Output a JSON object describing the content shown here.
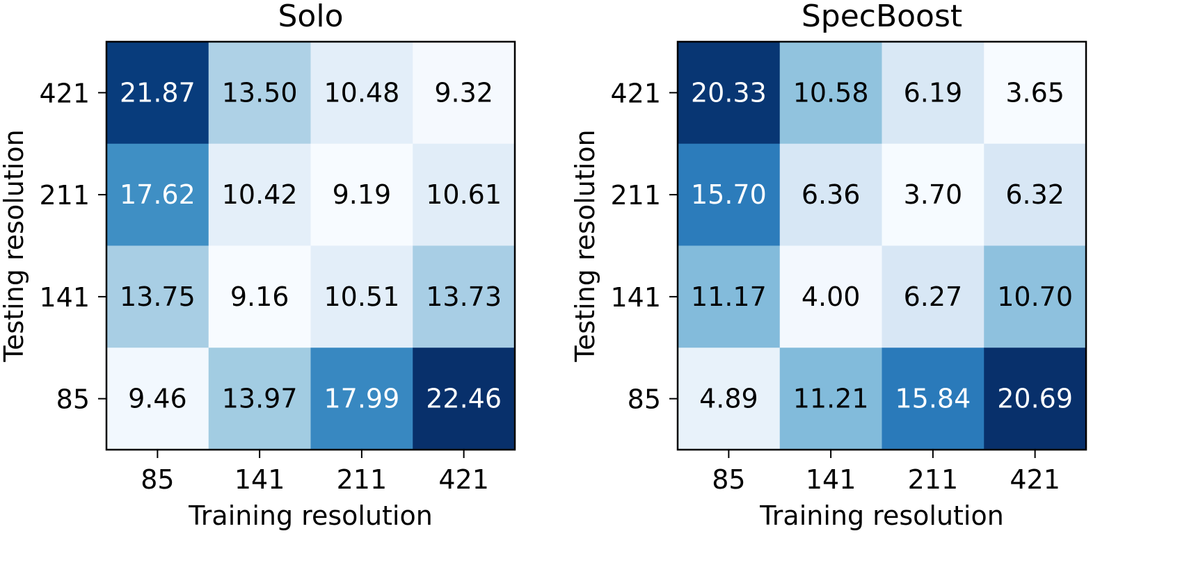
{
  "chart_data": [
    {
      "type": "heatmap",
      "title": "Solo",
      "xlabel": "Training resolution",
      "ylabel": "Testing resolution",
      "x_categories": [
        "85",
        "141",
        "211",
        "421"
      ],
      "y_categories_top_to_bottom": [
        "421",
        "211",
        "141",
        "85"
      ],
      "values": [
        [
          21.87,
          13.5,
          10.48,
          9.32
        ],
        [
          17.62,
          10.42,
          9.19,
          10.61
        ],
        [
          13.75,
          9.16,
          10.51,
          13.73
        ],
        [
          9.46,
          13.97,
          17.99,
          22.46
        ]
      ],
      "labels": [
        [
          "21.87",
          "13.50",
          "10.48",
          "9.32"
        ],
        [
          "17.62",
          "10.42",
          "9.19",
          "10.61"
        ],
        [
          "13.75",
          "9.16",
          "10.51",
          "13.73"
        ],
        [
          "9.46",
          "13.97",
          "17.99",
          "22.46"
        ]
      ],
      "colormap": "Blues",
      "vmin": 9.16,
      "vmax": 22.46
    },
    {
      "type": "heatmap",
      "title": "SpecBoost",
      "xlabel": "Training resolution",
      "ylabel": "Testing resolution",
      "x_categories": [
        "85",
        "141",
        "211",
        "421"
      ],
      "y_categories_top_to_bottom": [
        "421",
        "211",
        "141",
        "85"
      ],
      "values": [
        [
          20.33,
          10.58,
          6.19,
          3.65
        ],
        [
          15.7,
          6.36,
          3.7,
          6.32
        ],
        [
          11.17,
          4.0,
          6.27,
          10.7
        ],
        [
          4.89,
          11.21,
          15.84,
          20.69
        ]
      ],
      "labels": [
        [
          "20.33",
          "10.58",
          "6.19",
          "3.65"
        ],
        [
          "15.70",
          "6.36",
          "3.70",
          "6.32"
        ],
        [
          "11.17",
          "4.00",
          "6.27",
          "10.70"
        ],
        [
          "4.89",
          "11.21",
          "15.84",
          "20.69"
        ]
      ],
      "colormap": "Blues",
      "vmin": 3.65,
      "vmax": 20.69
    }
  ]
}
